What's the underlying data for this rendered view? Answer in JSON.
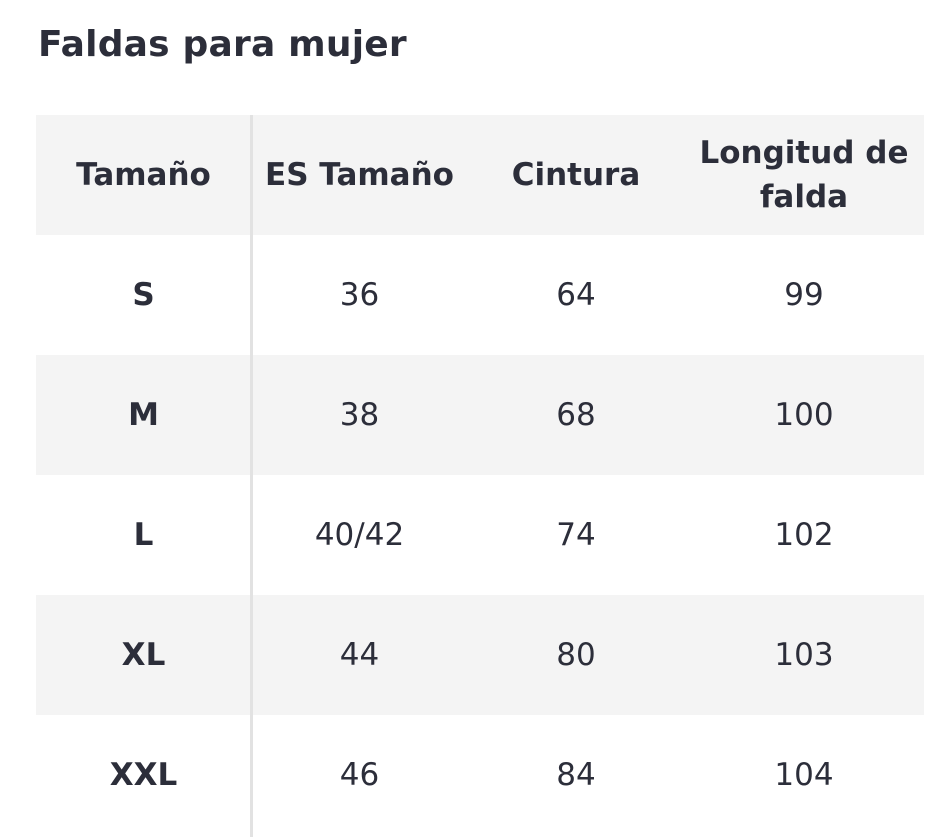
{
  "title": "Faldas para mujer",
  "table": {
    "headers": [
      "Tamaño",
      "ES Tamaño",
      "Cintura",
      "Longitud de falda"
    ],
    "rows": [
      [
        "S",
        "36",
        "64",
        "99"
      ],
      [
        "M",
        "38",
        "68",
        "100"
      ],
      [
        "L",
        "40/42",
        "74",
        "102"
      ],
      [
        "XL",
        "44",
        "80",
        "103"
      ],
      [
        "XXL",
        "46",
        "84",
        "104"
      ]
    ]
  }
}
